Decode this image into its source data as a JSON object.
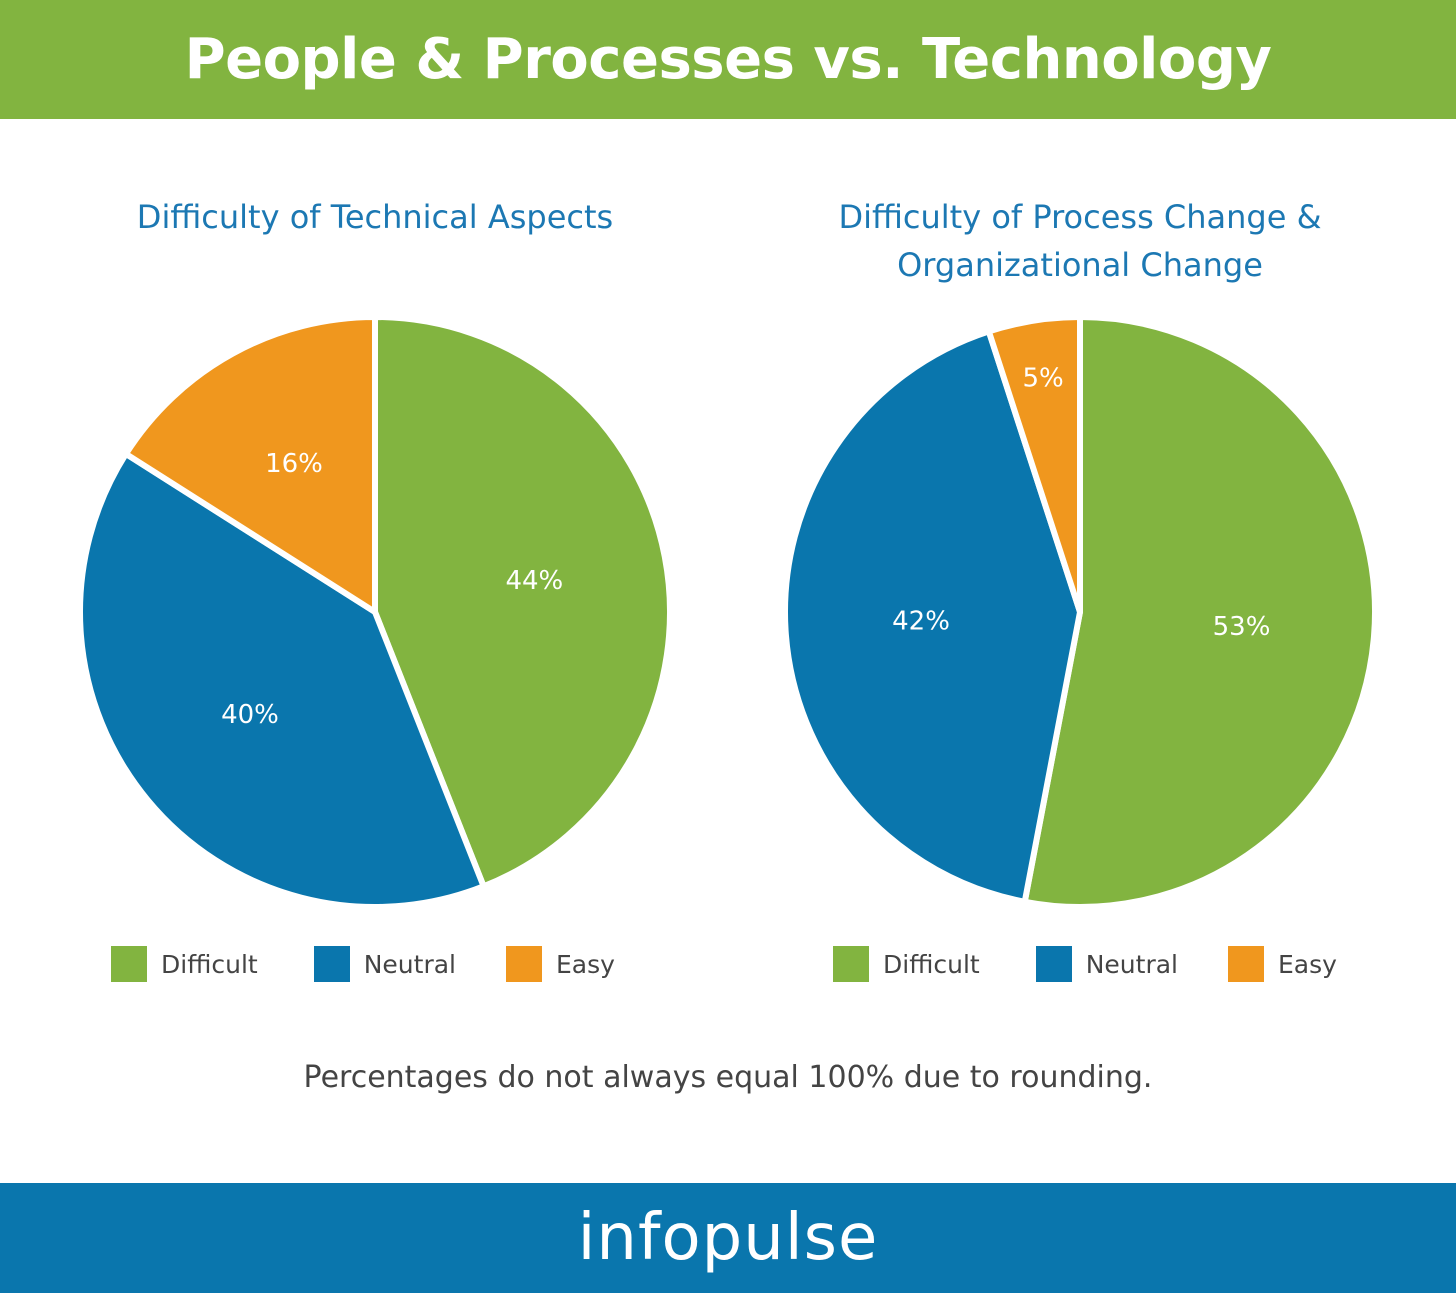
{
  "header": {
    "title": "People & Processes vs. Technology"
  },
  "colors": {
    "header_bg": "#82b440",
    "footer_bg": "#0a76ad",
    "title_text": "#1c78b3",
    "difficult": "#82b440",
    "neutral": "#0a76ad",
    "easy": "#f0971e"
  },
  "chart_data": [
    {
      "type": "pie",
      "title": "Difficulty of Technical Aspects",
      "categories": [
        "Difficult",
        "Neutral",
        "Easy"
      ],
      "values": [
        44,
        40,
        16
      ],
      "labels": [
        "44%",
        "40%",
        "16%"
      ],
      "colors": [
        "#82b440",
        "#0a76ad",
        "#f0971e"
      ],
      "legend": "bottom"
    },
    {
      "type": "pie",
      "title": "Difficulty of Process Change & Organizational Change",
      "categories": [
        "Difficult",
        "Neutral",
        "Easy"
      ],
      "values": [
        53,
        42,
        5
      ],
      "labels": [
        "53%",
        "42%",
        "5%"
      ],
      "colors": [
        "#82b440",
        "#0a76ad",
        "#f0971e"
      ],
      "legend": "bottom"
    }
  ],
  "title_lines": {
    "left": [
      "Difficulty of Technical Aspects"
    ],
    "right": [
      "Difficulty of Process Change &",
      "Organizational Change"
    ]
  },
  "footnote": "Percentages do not always equal 100% due to rounding.",
  "footer": {
    "logo_text": "infopulse"
  }
}
